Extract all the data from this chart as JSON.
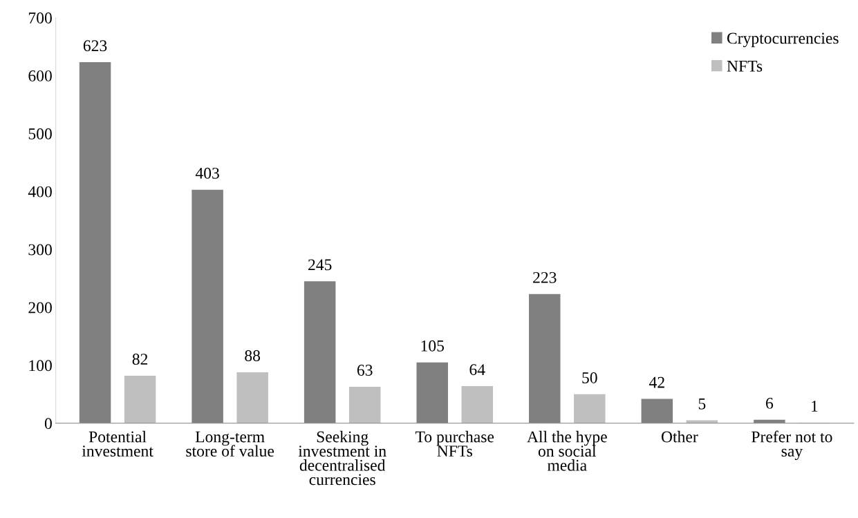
{
  "chart_data": {
    "type": "bar",
    "categories": [
      "Potential\ninvestment",
      "Long-term\nstore of value",
      "Seeking\ninvestment in\ndecentralised\ncurrencies",
      "To purchase\nNFTs",
      "All the hype\non social\nmedia",
      "Other",
      "Prefer not to\nsay"
    ],
    "series": [
      {
        "name": "Cryptocurrencies",
        "color": "#808080",
        "values": [
          623,
          403,
          245,
          105,
          223,
          42,
          6
        ]
      },
      {
        "name": "NFTs",
        "color": "#bfbfbf",
        "values": [
          82,
          88,
          63,
          64,
          50,
          5,
          1
        ]
      }
    ],
    "ylim": [
      0,
      700
    ],
    "yticks": [
      0,
      100,
      200,
      300,
      400,
      500,
      600,
      700
    ],
    "data_labels": true,
    "legend": "top right",
    "grid": false
  }
}
